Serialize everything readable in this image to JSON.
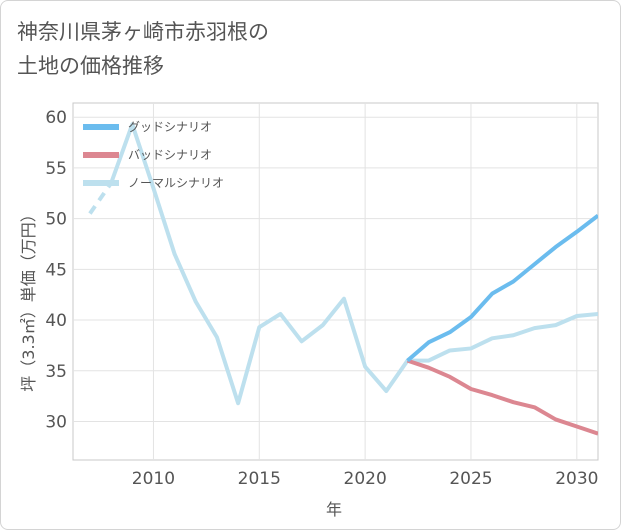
{
  "title_line1": "神奈川県茅ヶ崎市赤羽根の",
  "title_line2": "土地の価格推移",
  "chart_data": {
    "type": "line",
    "title": "神奈川県茅ヶ崎市赤羽根の土地の価格推移",
    "xlabel": "年",
    "ylabel": "坪（3.3㎡）単価（万円）",
    "xlim": [
      2006.2,
      2031
    ],
    "ylim": [
      26.2,
      61.4
    ],
    "xticks": [
      2010,
      2015,
      2020,
      2025,
      2030
    ],
    "yticks": [
      30,
      35,
      40,
      45,
      50,
      55,
      60
    ],
    "grid": true,
    "legend_position": "top-left",
    "series": [
      {
        "name": "グッドシナリオ",
        "color": "#6bbcee",
        "x": [
          2022,
          2023,
          2024,
          2025,
          2026,
          2027,
          2028,
          2029,
          2030,
          2031
        ],
        "y": [
          36.0,
          37.8,
          38.8,
          40.3,
          42.6,
          43.8,
          45.5,
          47.2,
          48.7,
          50.3
        ]
      },
      {
        "name": "バッドシナリオ",
        "color": "#dc8791",
        "x": [
          2022,
          2023,
          2024,
          2025,
          2026,
          2027,
          2028,
          2029,
          2030,
          2031
        ],
        "y": [
          36.0,
          35.3,
          34.4,
          33.2,
          32.6,
          31.9,
          31.4,
          30.2,
          29.5,
          28.8
        ]
      },
      {
        "name": "ノーマルシナリオ",
        "color": "#bde0ee",
        "x": [
          2007,
          2008,
          2009,
          2010,
          2011,
          2012,
          2013,
          2014,
          2015,
          2016,
          2017,
          2018,
          2019,
          2020,
          2021,
          2022,
          2023,
          2024,
          2025,
          2026,
          2027,
          2028,
          2029,
          2030,
          2031
        ],
        "y": [
          50.5,
          53.5,
          59.3,
          53.0,
          46.5,
          41.8,
          38.3,
          31.8,
          39.3,
          40.6,
          37.9,
          39.5,
          42.1,
          35.4,
          33.0,
          36.0,
          36.0,
          37.0,
          37.2,
          38.2,
          38.5,
          39.2,
          39.5,
          40.4,
          40.6
        ],
        "dashed_until_x": 2008
      }
    ]
  }
}
